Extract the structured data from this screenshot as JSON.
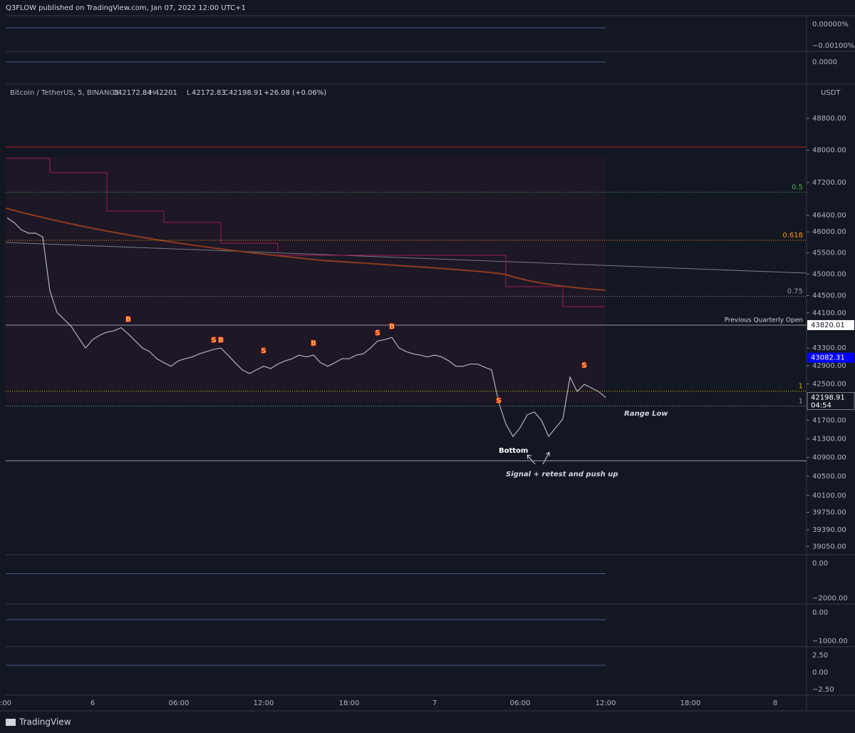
{
  "header": "Q3FLOW published on TradingView.com, Jan 07, 2022 12:00 UTC+1",
  "footer": "TradingView",
  "indicator_axes": [
    [
      "0.00000%",
      "−0.00100%"
    ],
    [
      "0.0000"
    ],
    [
      "0.00",
      "−2000.00"
    ],
    [
      "0.00",
      "−1000.00"
    ],
    [
      "2.50",
      "0.00",
      "−2.50"
    ]
  ],
  "time_axis": [
    ":00",
    "6",
    "06:00",
    "12:00",
    "18:00",
    "7",
    "06:00",
    "12:00",
    "18:00",
    "8"
  ],
  "annotations": {
    "range_low": "Range Low",
    "bottom": "Bottom",
    "signal": "Signal + retest and push up"
  },
  "chart_data": {
    "type": "line",
    "title": "Bitcoin / TetherUS, 5, BINANCE",
    "currency": "USDT",
    "ohlc": [
      {
        "label": "O",
        "value": 42172.84
      },
      {
        "label": "H",
        "value": 42201.0
      },
      {
        "label": "L",
        "value": 42172.83
      },
      {
        "label": "C",
        "value": 42198.91
      }
    ],
    "change": "+26.08 (+0.06%)",
    "log_scale": true,
    "color": "#b2b5be",
    "ylim": [
      38880,
      49680
    ],
    "yticks": [
      {
        "value": 48800,
        "label": "48800.00"
      },
      {
        "value": 48000,
        "label": "48000.00"
      },
      {
        "value": 47200,
        "label": "47200.00"
      },
      {
        "value": 46400,
        "label": "46400.00"
      },
      {
        "value": 46000,
        "label": "46000.00"
      },
      {
        "value": 45500,
        "label": "45500.00"
      },
      {
        "value": 45000,
        "label": "45000.00"
      },
      {
        "value": 44500,
        "label": "44500.00"
      },
      {
        "value": 44100,
        "label": "44100.00"
      },
      {
        "value": 43300,
        "label": "43300.00"
      },
      {
        "value": 42900,
        "label": "42900.00"
      },
      {
        "value": 42500,
        "label": "42500.00"
      },
      {
        "value": 41700,
        "label": "41700.00"
      },
      {
        "value": 41300,
        "label": "41300.00"
      },
      {
        "value": 40900,
        "label": "40900.00"
      },
      {
        "value": 40500,
        "label": "40500.00"
      },
      {
        "value": 40100,
        "label": "40100.00"
      },
      {
        "value": 39750,
        "label": "39750.00"
      },
      {
        "value": 39390,
        "label": "39390.00"
      },
      {
        "value": 39050,
        "label": "39050.00"
      }
    ],
    "values": [
      46340,
      46220,
      46050,
      45970,
      45970,
      45880,
      44610,
      44110,
      43950,
      43790,
      43540,
      43300,
      43490,
      43590,
      43660,
      43690,
      43760,
      43620,
      43460,
      43300,
      43220,
      43060,
      42970,
      42890,
      43010,
      43060,
      43100,
      43170,
      43220,
      43270,
      43300,
      43140,
      42970,
      42810,
      42730,
      42810,
      42890,
      42840,
      42940,
      43010,
      43060,
      43140,
      43100,
      43140,
      42970,
      42890,
      42970,
      43060,
      43060,
      43140,
      43170,
      43300,
      43460,
      43490,
      43540,
      43300,
      43220,
      43170,
      43140,
      43100,
      43140,
      43100,
      43010,
      42890,
      42890,
      42940,
      42940,
      42870,
      42810,
      42090,
      41620,
      41350,
      41540,
      41820,
      41880,
      41700,
      41350,
      41540,
      41730,
      42650,
      42330,
      42490,
      42410,
      42330,
      42199
    ],
    "signals": [
      {
        "label": "B",
        "index": 17,
        "value": 43820
      },
      {
        "label": "S",
        "index": 29,
        "value": 43350
      },
      {
        "label": "B",
        "index": 30,
        "value": 43350
      },
      {
        "label": "S",
        "index": 36,
        "value": 43110
      },
      {
        "label": "B",
        "index": 43,
        "value": 43280
      },
      {
        "label": "S",
        "index": 52,
        "value": 43510
      },
      {
        "label": "B",
        "index": 54,
        "value": 43660
      },
      {
        "label": "S",
        "index": 69,
        "value": 42000
      },
      {
        "label": "S",
        "index": 81,
        "value": 42780
      }
    ],
    "levels": [
      {
        "value": 48080,
        "color": "#b71c1c",
        "style": "solid"
      },
      {
        "value": 46960,
        "color": "#4caf50",
        "style": "dotted",
        "label": "0.5"
      },
      {
        "value": 45800,
        "color": "#ff9800",
        "style": "dotted",
        "label": "0.618"
      },
      {
        "value": 44480,
        "color": "#9598a1",
        "style": "dotted",
        "label": "0.75"
      },
      {
        "value": 43820.01,
        "color": "#9598a1",
        "style": "solid",
        "label": "Previous Quarterly Open"
      },
      {
        "value": 42340,
        "color": "#c8b400",
        "style": "dotted",
        "label": "1"
      },
      {
        "value": 42010,
        "color": "#9598a1",
        "style": "dotted",
        "label": "1"
      },
      {
        "value": 40830,
        "color": "#9598a1",
        "style": "solid"
      }
    ],
    "price_boxes": [
      {
        "value": 43820.01,
        "bg": "#ffffff",
        "fg": "#131722"
      },
      {
        "value": 43082.31,
        "bg": "#0000ff",
        "fg": "#ffffff"
      },
      {
        "value": 42198.91,
        "bg": "#131722",
        "fg": "#ffffff",
        "sub": "04:54"
      }
    ]
  }
}
